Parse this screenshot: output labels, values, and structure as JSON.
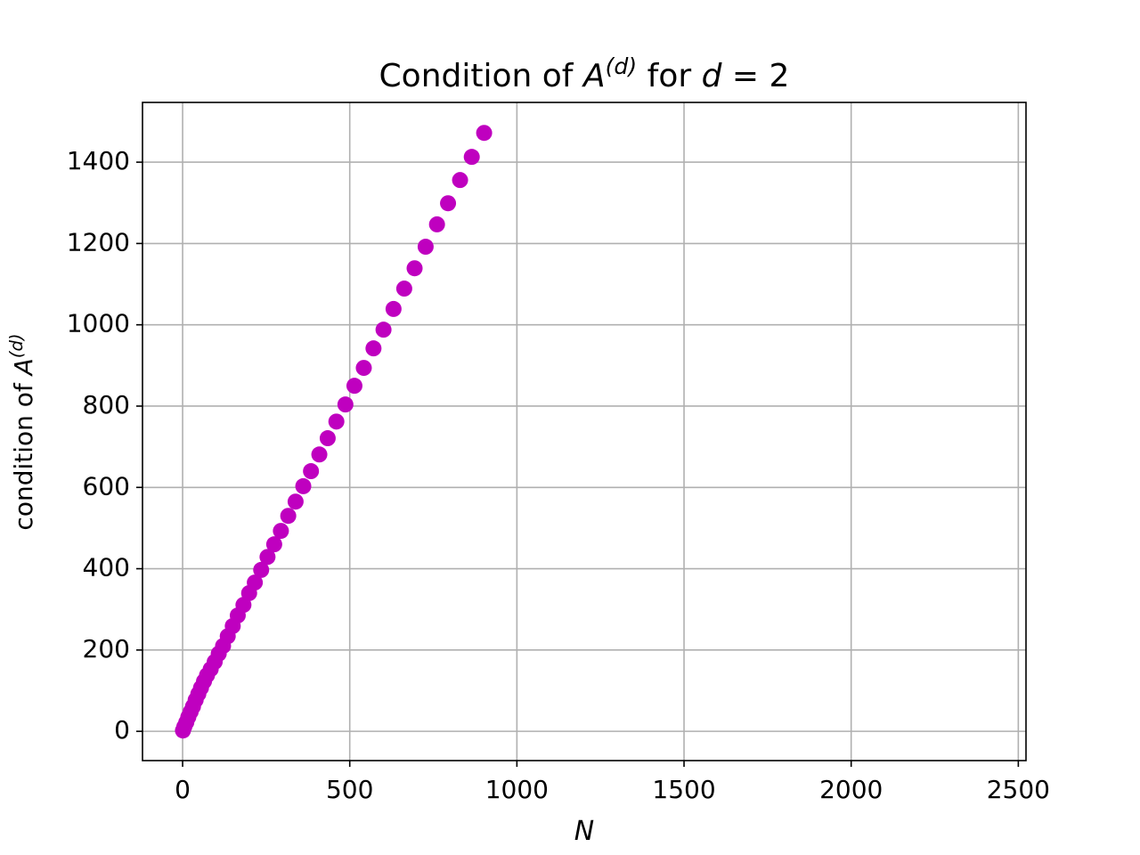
{
  "chart_data": {
    "type": "scatter",
    "title": [
      "Condition of ",
      "A",
      "(d)",
      " for ",
      "d",
      " = 2"
    ],
    "xlabel": "N",
    "ylabel": [
      "condition of ",
      "A",
      "(d)"
    ],
    "color": "#bf00bf",
    "grid": true,
    "xlim": [
      -120,
      2523
    ],
    "ylim": [
      -72,
      1547
    ],
    "xticks": [
      0,
      500,
      1000,
      1500,
      2000,
      2500
    ],
    "yticks": [
      0,
      200,
      400,
      600,
      800,
      1000,
      1200,
      1400
    ],
    "x": [
      1,
      5,
      11,
      17,
      24,
      31,
      39,
      47,
      55,
      64,
      73,
      84,
      96,
      108,
      121,
      135,
      150,
      165,
      182,
      199,
      216,
      235,
      254,
      274,
      294,
      316,
      338,
      361,
      384,
      409,
      434,
      460,
      487,
      514,
      542,
      571,
      601,
      631,
      663,
      694,
      727,
      761,
      794,
      830,
      865,
      902
    ],
    "y": [
      2,
      11,
      22,
      35,
      48,
      61,
      77,
      92,
      107,
      123,
      138,
      153,
      171,
      191,
      210,
      234,
      259,
      285,
      311,
      340,
      366,
      397,
      429,
      460,
      493,
      530,
      565,
      603,
      640,
      681,
      721,
      762,
      804,
      850,
      894,
      942,
      988,
      1039,
      1089,
      1139,
      1192,
      1247,
      1299,
      1356,
      1413,
      1472
    ]
  }
}
